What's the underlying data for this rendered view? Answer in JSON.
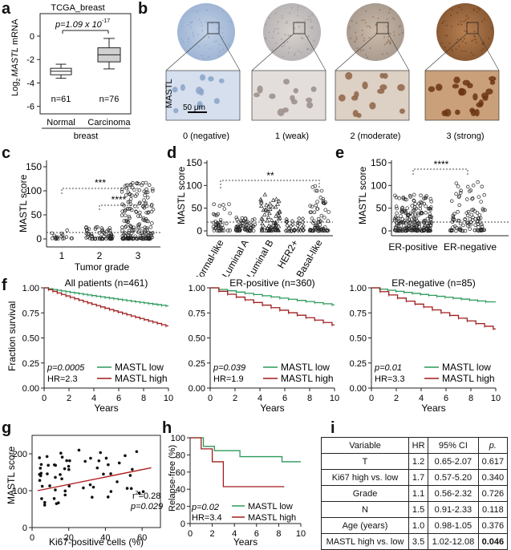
{
  "panel_labels": [
    "a",
    "b",
    "c",
    "d",
    "e",
    "f",
    "g",
    "h",
    "i"
  ],
  "colors": {
    "low": "#2a9a5a",
    "high": "#a01c1c",
    "ihc_blue": "#b9c9de",
    "ihc_brown": "#8a4a1c"
  },
  "panel_a": {
    "title": "TCGA_breast",
    "pvalue": "p=1.09 x 10",
    "pvalue_exp": "-17",
    "ylabel_pre": "Log",
    "ylabel_sub": "2",
    "ylabel_gene": "MASTL",
    "ylabel_post": "mRNA",
    "yticks": [
      "0",
      "-2",
      "-4",
      "-6"
    ],
    "groups": [
      {
        "name": "Normal",
        "n": "n=61",
        "q1": -3.3,
        "median": -3.0,
        "q3": -2.75,
        "min": -3.6,
        "max": -2.4
      },
      {
        "name": "Carcinoma",
        "n": "n=76",
        "q1": -2.2,
        "median": -1.6,
        "q3": -1.0,
        "min": -2.8,
        "max": -0.2
      }
    ],
    "xgroup": "breast"
  },
  "panel_b": {
    "row_label": "MASTL",
    "scale": "50 μm",
    "scores": [
      "0 (negative)",
      "1 (weak)",
      "2 (moderate)",
      "3 (strong)"
    ]
  },
  "panel_c": {
    "ylabel": "MASTL score",
    "xlabel": "Tumor grade",
    "yticks": [
      "0",
      "50",
      "100",
      "150"
    ],
    "categories": [
      "1",
      "2",
      "3"
    ],
    "sig": [
      "***",
      "****"
    ]
  },
  "panel_d": {
    "ylabel": "MASTL score",
    "yticks": [
      "0",
      "50",
      "100",
      "150"
    ],
    "categories": [
      "Normal-like",
      "Luminal A",
      "Luminal B",
      "HER2+",
      "Basal-like"
    ],
    "sig": "**"
  },
  "panel_e": {
    "ylabel": "MASTL score",
    "yticks": [
      "0",
      "50",
      "100",
      "150"
    ],
    "categories": [
      "ER-positive",
      "ER-negative"
    ],
    "sig": "****"
  },
  "panel_f": {
    "ylabel": "Fraction survival",
    "xlabel": "Years",
    "yticks": [
      "0.00",
      "0.25",
      "0.50",
      "0.75",
      "1.00"
    ],
    "xticks": [
      "0",
      "2",
      "4",
      "6",
      "8",
      "10"
    ],
    "legend_low": "MASTL low",
    "legend_high": "MASTL high",
    "plots": [
      {
        "title": "All patients (n=461)",
        "p": "p=0.0005",
        "hr": "HR=2.3"
      },
      {
        "title": "ER-positive (n=360)",
        "p": "p=0.039",
        "hr": "HR=1.9"
      },
      {
        "title": "ER-negative (n=85)",
        "p": "p=0.01",
        "hr": "HR=3.3"
      }
    ]
  },
  "chart_data": [
    {
      "type": "scatter",
      "title": "",
      "xlabel": "Ki67-positive cells (%)",
      "ylabel": "MASTL score",
      "xlim": [
        0,
        70
      ],
      "ylim": [
        0,
        250
      ],
      "xticks": [
        "0",
        "20",
        "40",
        "60"
      ],
      "yticks": [
        "0",
        "100",
        "200"
      ],
      "annotation_r2": "r2=0.28",
      "r2_pre": "r",
      "r2_sup": "2",
      "r2_post": "=0.28",
      "annotation_p": "p=0.029",
      "regression": {
        "x": [
          3,
          65
        ],
        "y": [
          100,
          162
        ]
      }
    },
    {
      "type": "line",
      "title": "",
      "xlabel": "Years",
      "ylabel": "Relapse-free (%)",
      "xlim": [
        0,
        10
      ],
      "ylim": [
        0,
        100
      ],
      "xticks": [
        "0",
        "2",
        "4",
        "6",
        "8",
        "10"
      ],
      "yticks": [
        "0",
        "20",
        "40",
        "60",
        "80",
        "100"
      ],
      "annotation_p": "p=0.02",
      "annotation_hr": "HR=3.4",
      "series": [
        {
          "name": "MASTL low",
          "x": [
            0,
            1.2,
            1.2,
            2.2,
            2.2,
            4.5,
            4.5,
            8.3,
            8.3,
            10
          ],
          "y": [
            100,
            100,
            90,
            90,
            85,
            85,
            78,
            78,
            72,
            72
          ]
        },
        {
          "name": "MASTL high",
          "x": [
            0,
            1.0,
            1.0,
            2.0,
            2.0,
            3.0,
            3.0,
            8.5
          ],
          "y": [
            100,
            100,
            87,
            87,
            72,
            72,
            43,
            43
          ]
        }
      ]
    }
  ],
  "panel_i": {
    "headers": [
      "Variable",
      "HR",
      "95% CI",
      "p."
    ],
    "rows": [
      [
        "T",
        "1.2",
        "0.65-2.07",
        "0.617"
      ],
      [
        "Ki67 high vs. low",
        "1.7",
        "0.57-5.20",
        "0.340"
      ],
      [
        "Grade",
        "1.1",
        "0.56-2.32",
        "0.726"
      ],
      [
        "N",
        "1.5",
        "0.91-2.33",
        "0.118"
      ],
      [
        "Age (years)",
        "1.0",
        "0.98-1.05",
        "0.376"
      ],
      [
        "MASTL high vs. low",
        "3.5",
        "1.02-12.08",
        "0.046"
      ]
    ]
  }
}
